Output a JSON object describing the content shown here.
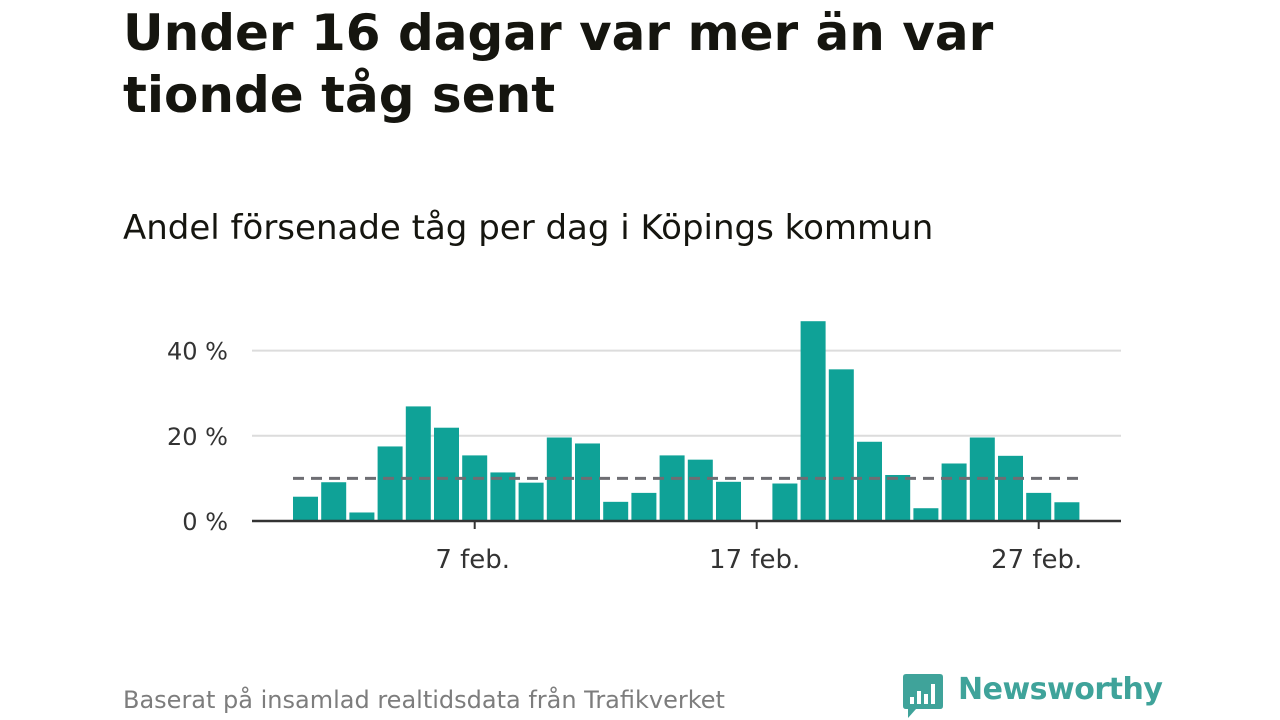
{
  "header": {
    "title": "Under 16 dagar var mer än var tionde tåg sent",
    "subtitle": "Andel försenade tåg per dag i Köpings kommun"
  },
  "chart_data": {
    "type": "bar",
    "categories": [
      "1 feb.",
      "2 feb.",
      "3 feb.",
      "4 feb.",
      "5 feb.",
      "6 feb.",
      "7 feb.",
      "8 feb.",
      "9 feb.",
      "10 feb.",
      "11 feb.",
      "12 feb.",
      "13 feb.",
      "14 feb.",
      "15 feb.",
      "16 feb.",
      "17 feb.",
      "18 feb.",
      "19 feb.",
      "20 feb.",
      "21 feb.",
      "22 feb.",
      "23 feb.",
      "24 feb.",
      "25 feb.",
      "26 feb.",
      "27 feb.",
      "28 feb."
    ],
    "series": [
      {
        "values": [
          5.7,
          9.1,
          2.0,
          17.5,
          26.9,
          21.9,
          15.4,
          11.4,
          9.0,
          19.6,
          18.2,
          4.5,
          6.6,
          15.4,
          14.4,
          9.2,
          0,
          8.8,
          46.9,
          35.6,
          18.6,
          10.8,
          3.0,
          13.5,
          19.6,
          15.3,
          6.6,
          4.4
        ]
      }
    ],
    "reference_line": 10,
    "ylim": [
      0,
      47
    ],
    "y_ticks": [
      0,
      20,
      40
    ],
    "y_tick_labels": [
      "0 %",
      "20 %",
      "40 %"
    ],
    "x_tick_labels": [
      {
        "category": "7 feb.",
        "label": "7 feb."
      },
      {
        "category": "17 feb.",
        "label": "17 feb."
      },
      {
        "category": "27 feb.",
        "label": "27 feb."
      }
    ],
    "xlabel": "",
    "ylabel": "",
    "grid": true,
    "legend": "none"
  },
  "footer": {
    "source": "Baserat på insamlad realtidsdata från Trafikverket",
    "brand": "Newsworthy"
  },
  "colors": {
    "bar": "#0fa297",
    "reference_line": "#6e6e73",
    "gridline": "#dcdcdc",
    "axis": "#333333",
    "title": "#15150f",
    "tick_label": "#333333",
    "source_text": "#7d7d7d",
    "brand": "#3fa39a"
  },
  "icons": {
    "brand_logo": "bar-chart-speech-bubble-icon"
  }
}
